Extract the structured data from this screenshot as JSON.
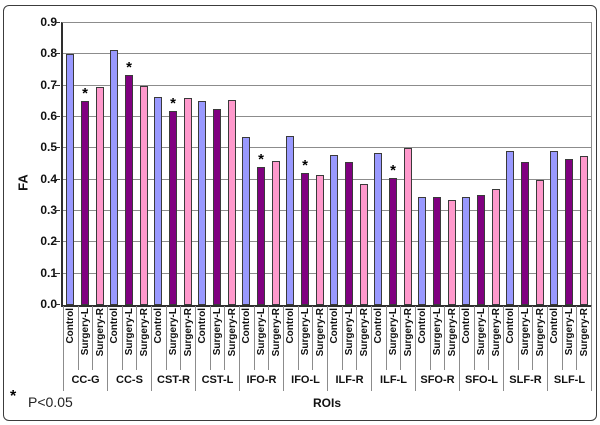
{
  "chart_data": {
    "type": "bar",
    "title": "",
    "xlabel": "ROIs",
    "ylabel": "FA",
    "ylim": [
      0,
      0.9
    ],
    "yticks": [
      "0.0",
      "0.1",
      "0.2",
      "0.3",
      "0.4",
      "0.5",
      "0.6",
      "0.7",
      "0.8",
      "0.9"
    ],
    "grid": "horizontal",
    "legend": "none",
    "series_labels": [
      "Control",
      "Surgery-L",
      "Surgery-R"
    ],
    "series_colors": [
      "#9999FF",
      "#800080",
      "#FF99CC"
    ],
    "significance_marker": "*",
    "footnote": "P<0.05",
    "groups": [
      {
        "label": "CC-G",
        "values": [
          0.8,
          0.65,
          0.695
        ],
        "significant": [
          false,
          true,
          false
        ]
      },
      {
        "label": "CC-S",
        "values": [
          0.815,
          0.735,
          0.7
        ],
        "significant": [
          false,
          true,
          false
        ]
      },
      {
        "label": "CST-R",
        "values": [
          0.665,
          0.62,
          0.66
        ],
        "significant": [
          false,
          true,
          false
        ]
      },
      {
        "label": "CST-L",
        "values": [
          0.65,
          0.625,
          0.655
        ],
        "significant": [
          false,
          false,
          false
        ]
      },
      {
        "label": "IFO-R",
        "values": [
          0.535,
          0.44,
          0.46
        ],
        "significant": [
          false,
          true,
          false
        ]
      },
      {
        "label": "IFO-L",
        "values": [
          0.54,
          0.42,
          0.415
        ],
        "significant": [
          false,
          true,
          false
        ]
      },
      {
        "label": "ILF-R",
        "values": [
          0.48,
          0.455,
          0.385
        ],
        "significant": [
          false,
          false,
          false
        ]
      },
      {
        "label": "ILF-L",
        "values": [
          0.485,
          0.405,
          0.5
        ],
        "significant": [
          false,
          true,
          false
        ]
      },
      {
        "label": "SFO-R",
        "values": [
          0.345,
          0.345,
          0.335
        ],
        "significant": [
          false,
          false,
          false
        ]
      },
      {
        "label": "SFO-L",
        "values": [
          0.345,
          0.35,
          0.37
        ],
        "significant": [
          false,
          false,
          false
        ]
      },
      {
        "label": "SLF-R",
        "values": [
          0.49,
          0.455,
          0.4
        ],
        "significant": [
          false,
          false,
          false
        ]
      },
      {
        "label": "SLF-L",
        "values": [
          0.49,
          0.465,
          0.475
        ],
        "significant": [
          false,
          false,
          false
        ]
      }
    ]
  }
}
